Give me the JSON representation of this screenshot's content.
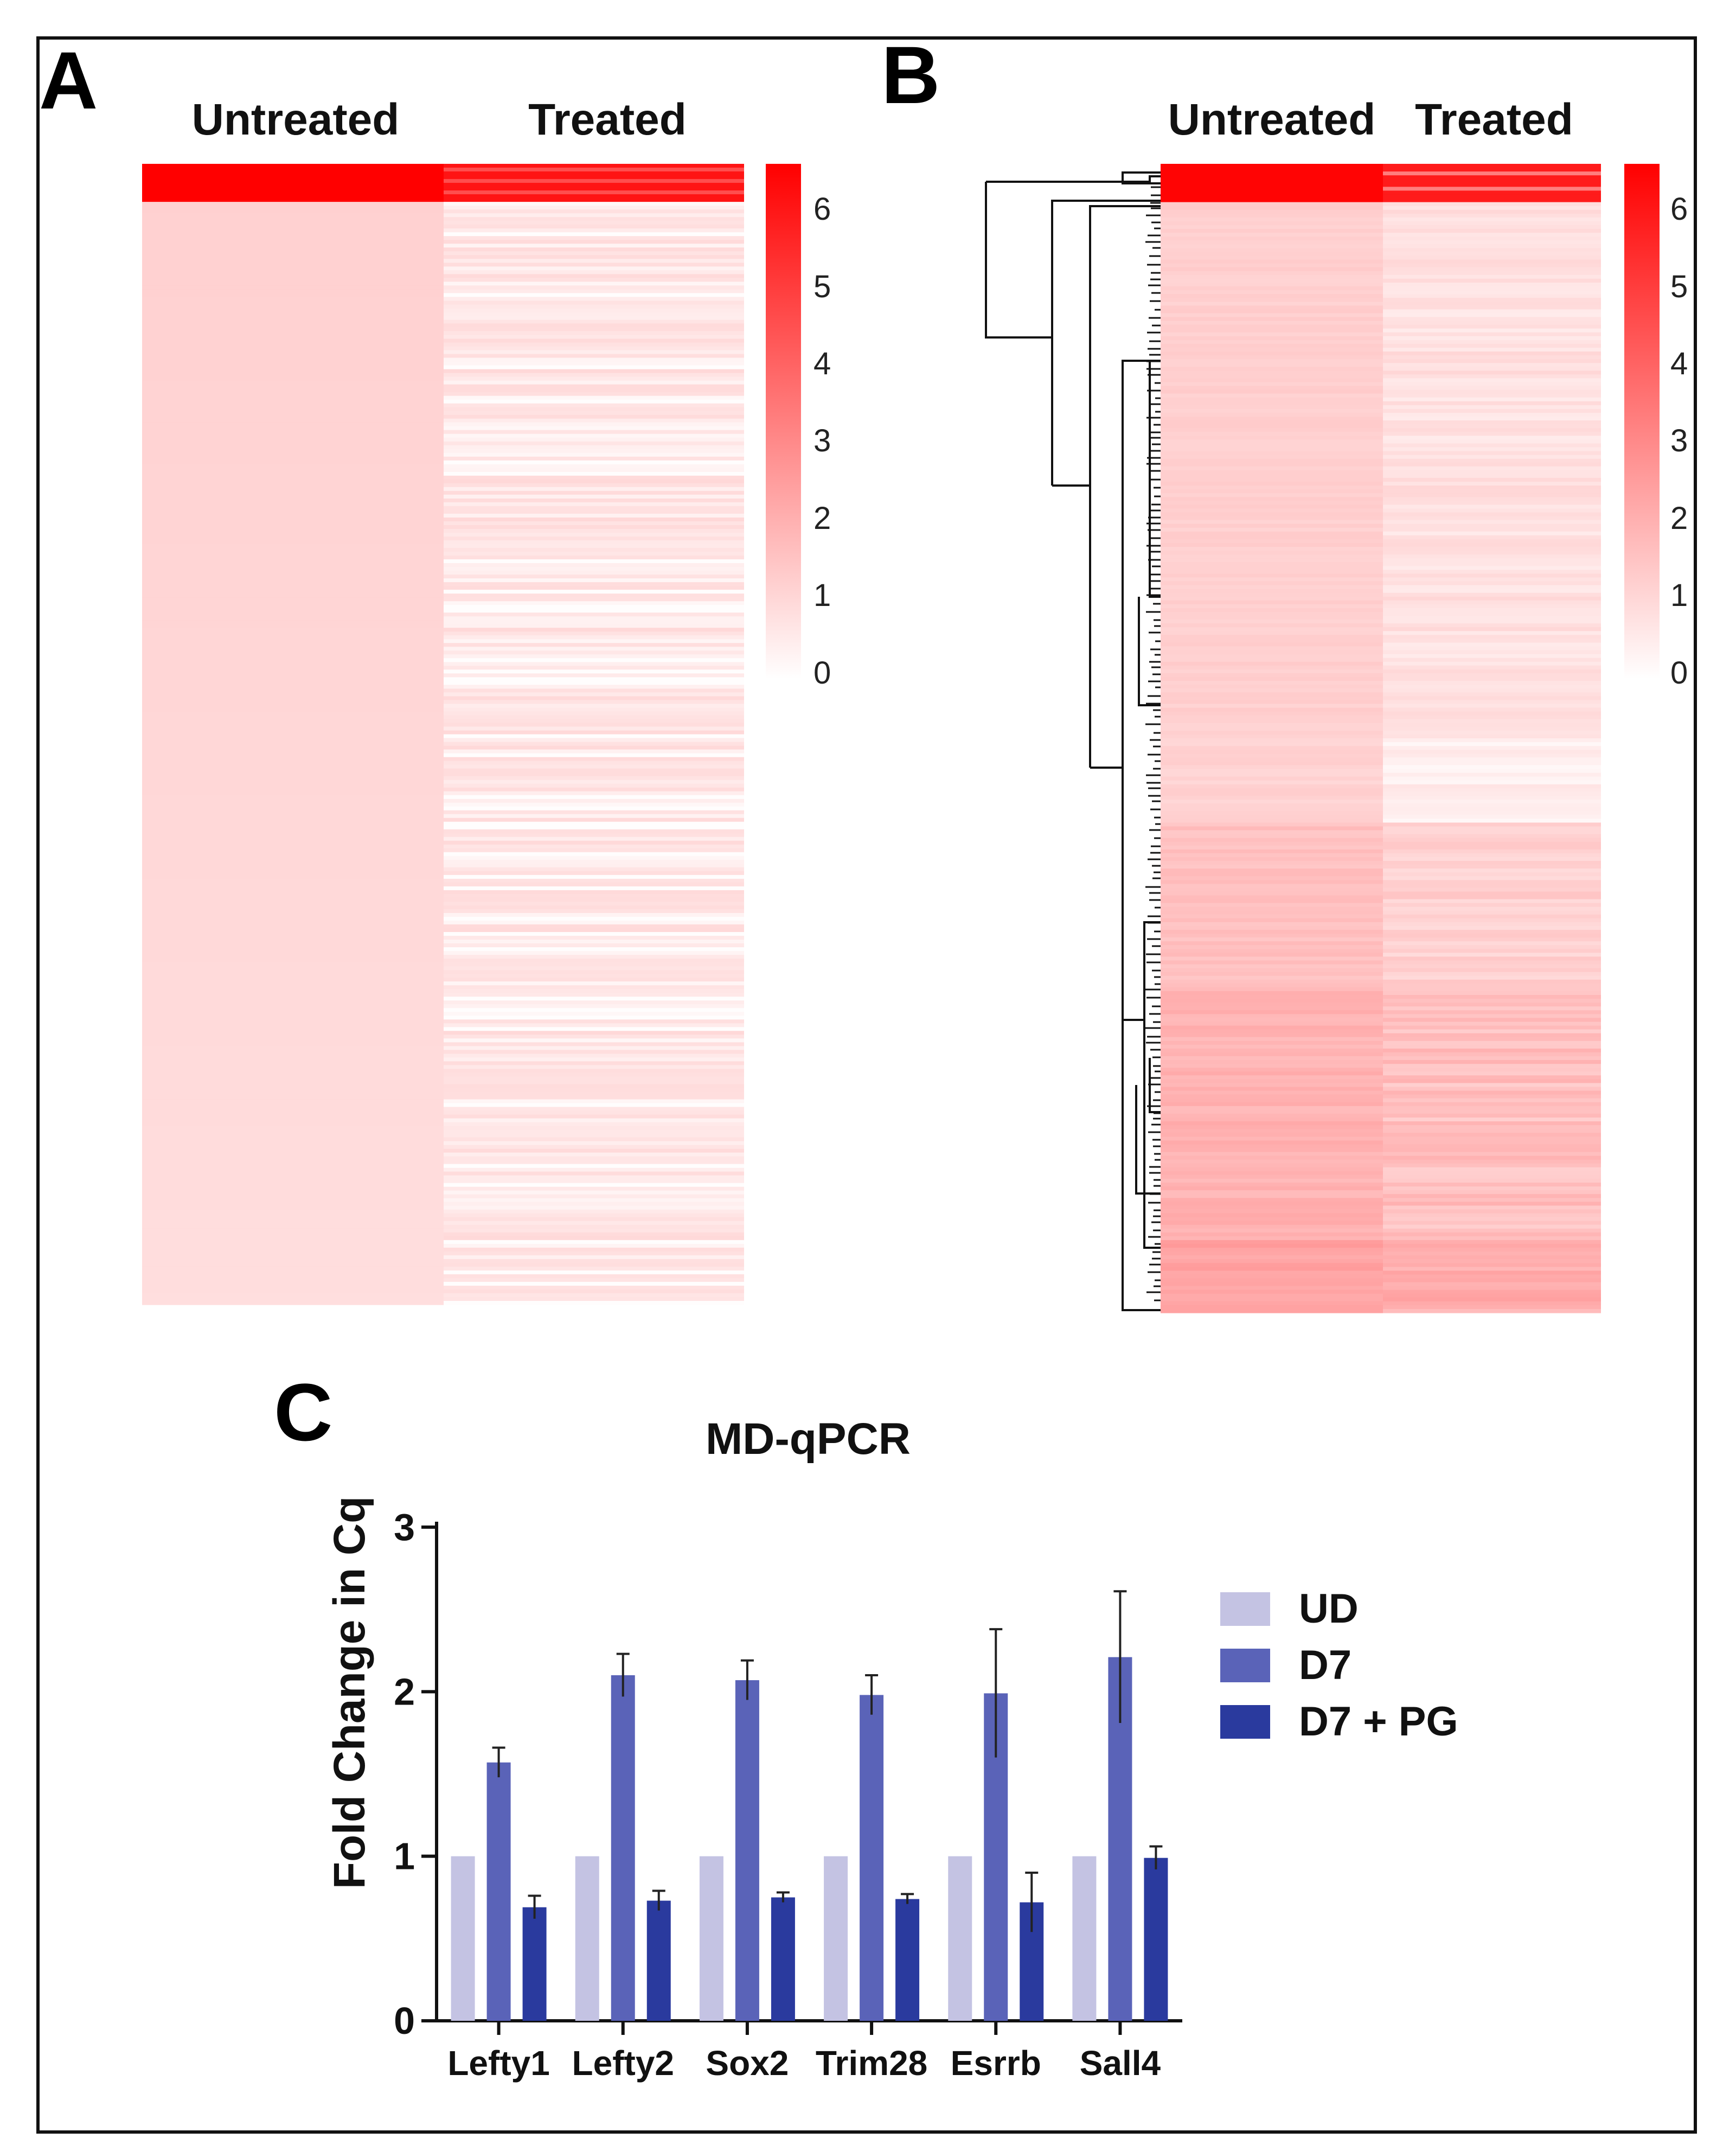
{
  "panels": {
    "a": {
      "letter": "A",
      "col_untreated": "Untreated",
      "col_treated": "Treated",
      "colorbar_ticks": [
        "6",
        "5",
        "4",
        "3",
        "2",
        "1",
        "0"
      ]
    },
    "b": {
      "letter": "B",
      "col_untreated": "Untreated",
      "col_treated": "Treated",
      "colorbar_ticks": [
        "6",
        "5",
        "4",
        "3",
        "2",
        "1",
        "0"
      ]
    },
    "c": {
      "letter": "C"
    }
  },
  "chart_data": [
    {
      "type": "heatmap",
      "panel": "A",
      "columns": [
        "Untreated",
        "Treated"
      ],
      "rows": 300,
      "value_range": [
        0,
        6.5
      ],
      "colormap": [
        "#ffffff",
        "#ff0000"
      ],
      "description_values": {
        "untreated_top_block": 6.5,
        "untreated_rest": 1.2,
        "treated_top_block": 6.0,
        "treated_rest_range": [
          0.2,
          1.0
        ]
      }
    },
    {
      "type": "heatmap",
      "panel": "B",
      "columns": [
        "Untreated",
        "Treated"
      ],
      "rows": 300,
      "value_range": [
        0,
        6.5
      ],
      "colormap": [
        "#ffffff",
        "#ff0000"
      ],
      "clustered": true
    },
    {
      "type": "bar",
      "panel": "C",
      "title": "MD-qPCR",
      "xlabel": "",
      "ylabel": "Fold Change in Cq",
      "ylim": [
        0,
        3
      ],
      "yticks": [
        "0",
        "1",
        "2",
        "3"
      ],
      "categories": [
        "Lefty1",
        "Lefty2",
        "Sox2",
        "Trim28",
        "Esrrb",
        "Sall4"
      ],
      "series": [
        {
          "name": "UD",
          "color": "#c4c3e3",
          "values": [
            1,
            1,
            1,
            1,
            1,
            1
          ],
          "errors": [
            0,
            0,
            0,
            0,
            0,
            0
          ]
        },
        {
          "name": "D7",
          "color": "#5a63b8",
          "values": [
            1.57,
            2.1,
            2.07,
            1.98,
            1.99,
            2.21
          ],
          "errors": [
            0.09,
            0.13,
            0.12,
            0.12,
            0.39,
            0.4
          ]
        },
        {
          "name": "D7 + PG",
          "color": "#2a3a9e",
          "values": [
            0.69,
            0.73,
            0.75,
            0.74,
            0.72,
            0.99
          ],
          "errors": [
            0.07,
            0.06,
            0.03,
            0.03,
            0.18,
            0.07
          ]
        }
      ]
    }
  ]
}
